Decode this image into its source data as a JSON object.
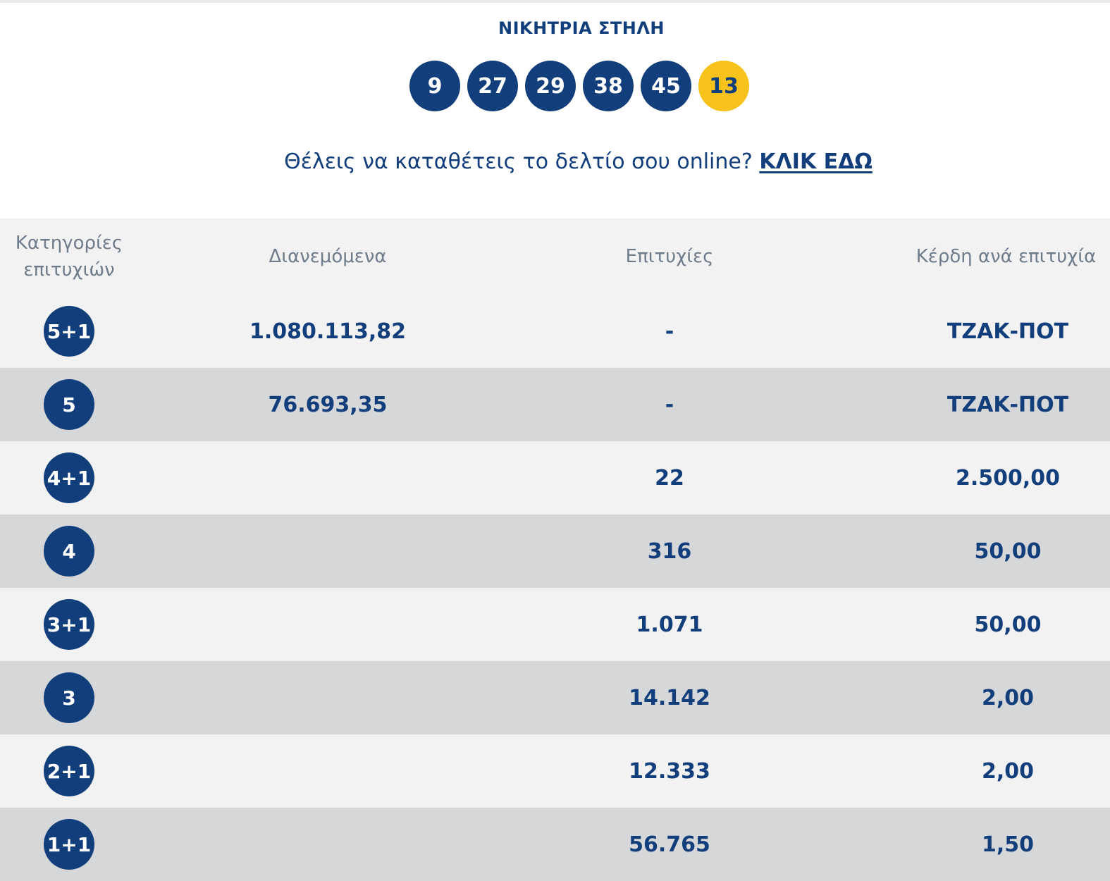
{
  "header": {
    "title": "ΝΙΚΗΤΡΙΑ ΣΤΗΛΗ",
    "numbers": [
      "9",
      "27",
      "29",
      "38",
      "45"
    ],
    "bonus": "13"
  },
  "cta": {
    "text": "Θέλεις να καταθέτεις το δελτίο σου online?",
    "link_label": "ΚΛΙΚ ΕΔΩ"
  },
  "table": {
    "headers": {
      "category_line1": "Κατηγορίες",
      "category_line2": "επιτυχιών",
      "distributed": "Διανεμόμενα",
      "winners": "Επιτυχίες",
      "prize": "Κέρδη ανά επιτυχία"
    },
    "rows": [
      {
        "category": "5+1",
        "distributed": "1.080.113,82",
        "winners": "-",
        "prize": "ΤΖΑΚ-ΠΟΤ"
      },
      {
        "category": "5",
        "distributed": "76.693,35",
        "winners": "-",
        "prize": "ΤΖΑΚ-ΠΟΤ"
      },
      {
        "category": "4+1",
        "distributed": "",
        "winners": "22",
        "prize": "2.500,00"
      },
      {
        "category": "4",
        "distributed": "",
        "winners": "316",
        "prize": "50,00"
      },
      {
        "category": "3+1",
        "distributed": "",
        "winners": "1.071",
        "prize": "50,00"
      },
      {
        "category": "3",
        "distributed": "",
        "winners": "14.142",
        "prize": "2,00"
      },
      {
        "category": "2+1",
        "distributed": "",
        "winners": "12.333",
        "prize": "2,00"
      },
      {
        "category": "1+1",
        "distributed": "",
        "winners": "56.765",
        "prize": "1,50"
      }
    ]
  },
  "colors": {
    "primary": "#123e7c",
    "bonus": "#f6c21b",
    "row_light": "#f2f2f2",
    "row_dark": "#d6d7d9"
  }
}
